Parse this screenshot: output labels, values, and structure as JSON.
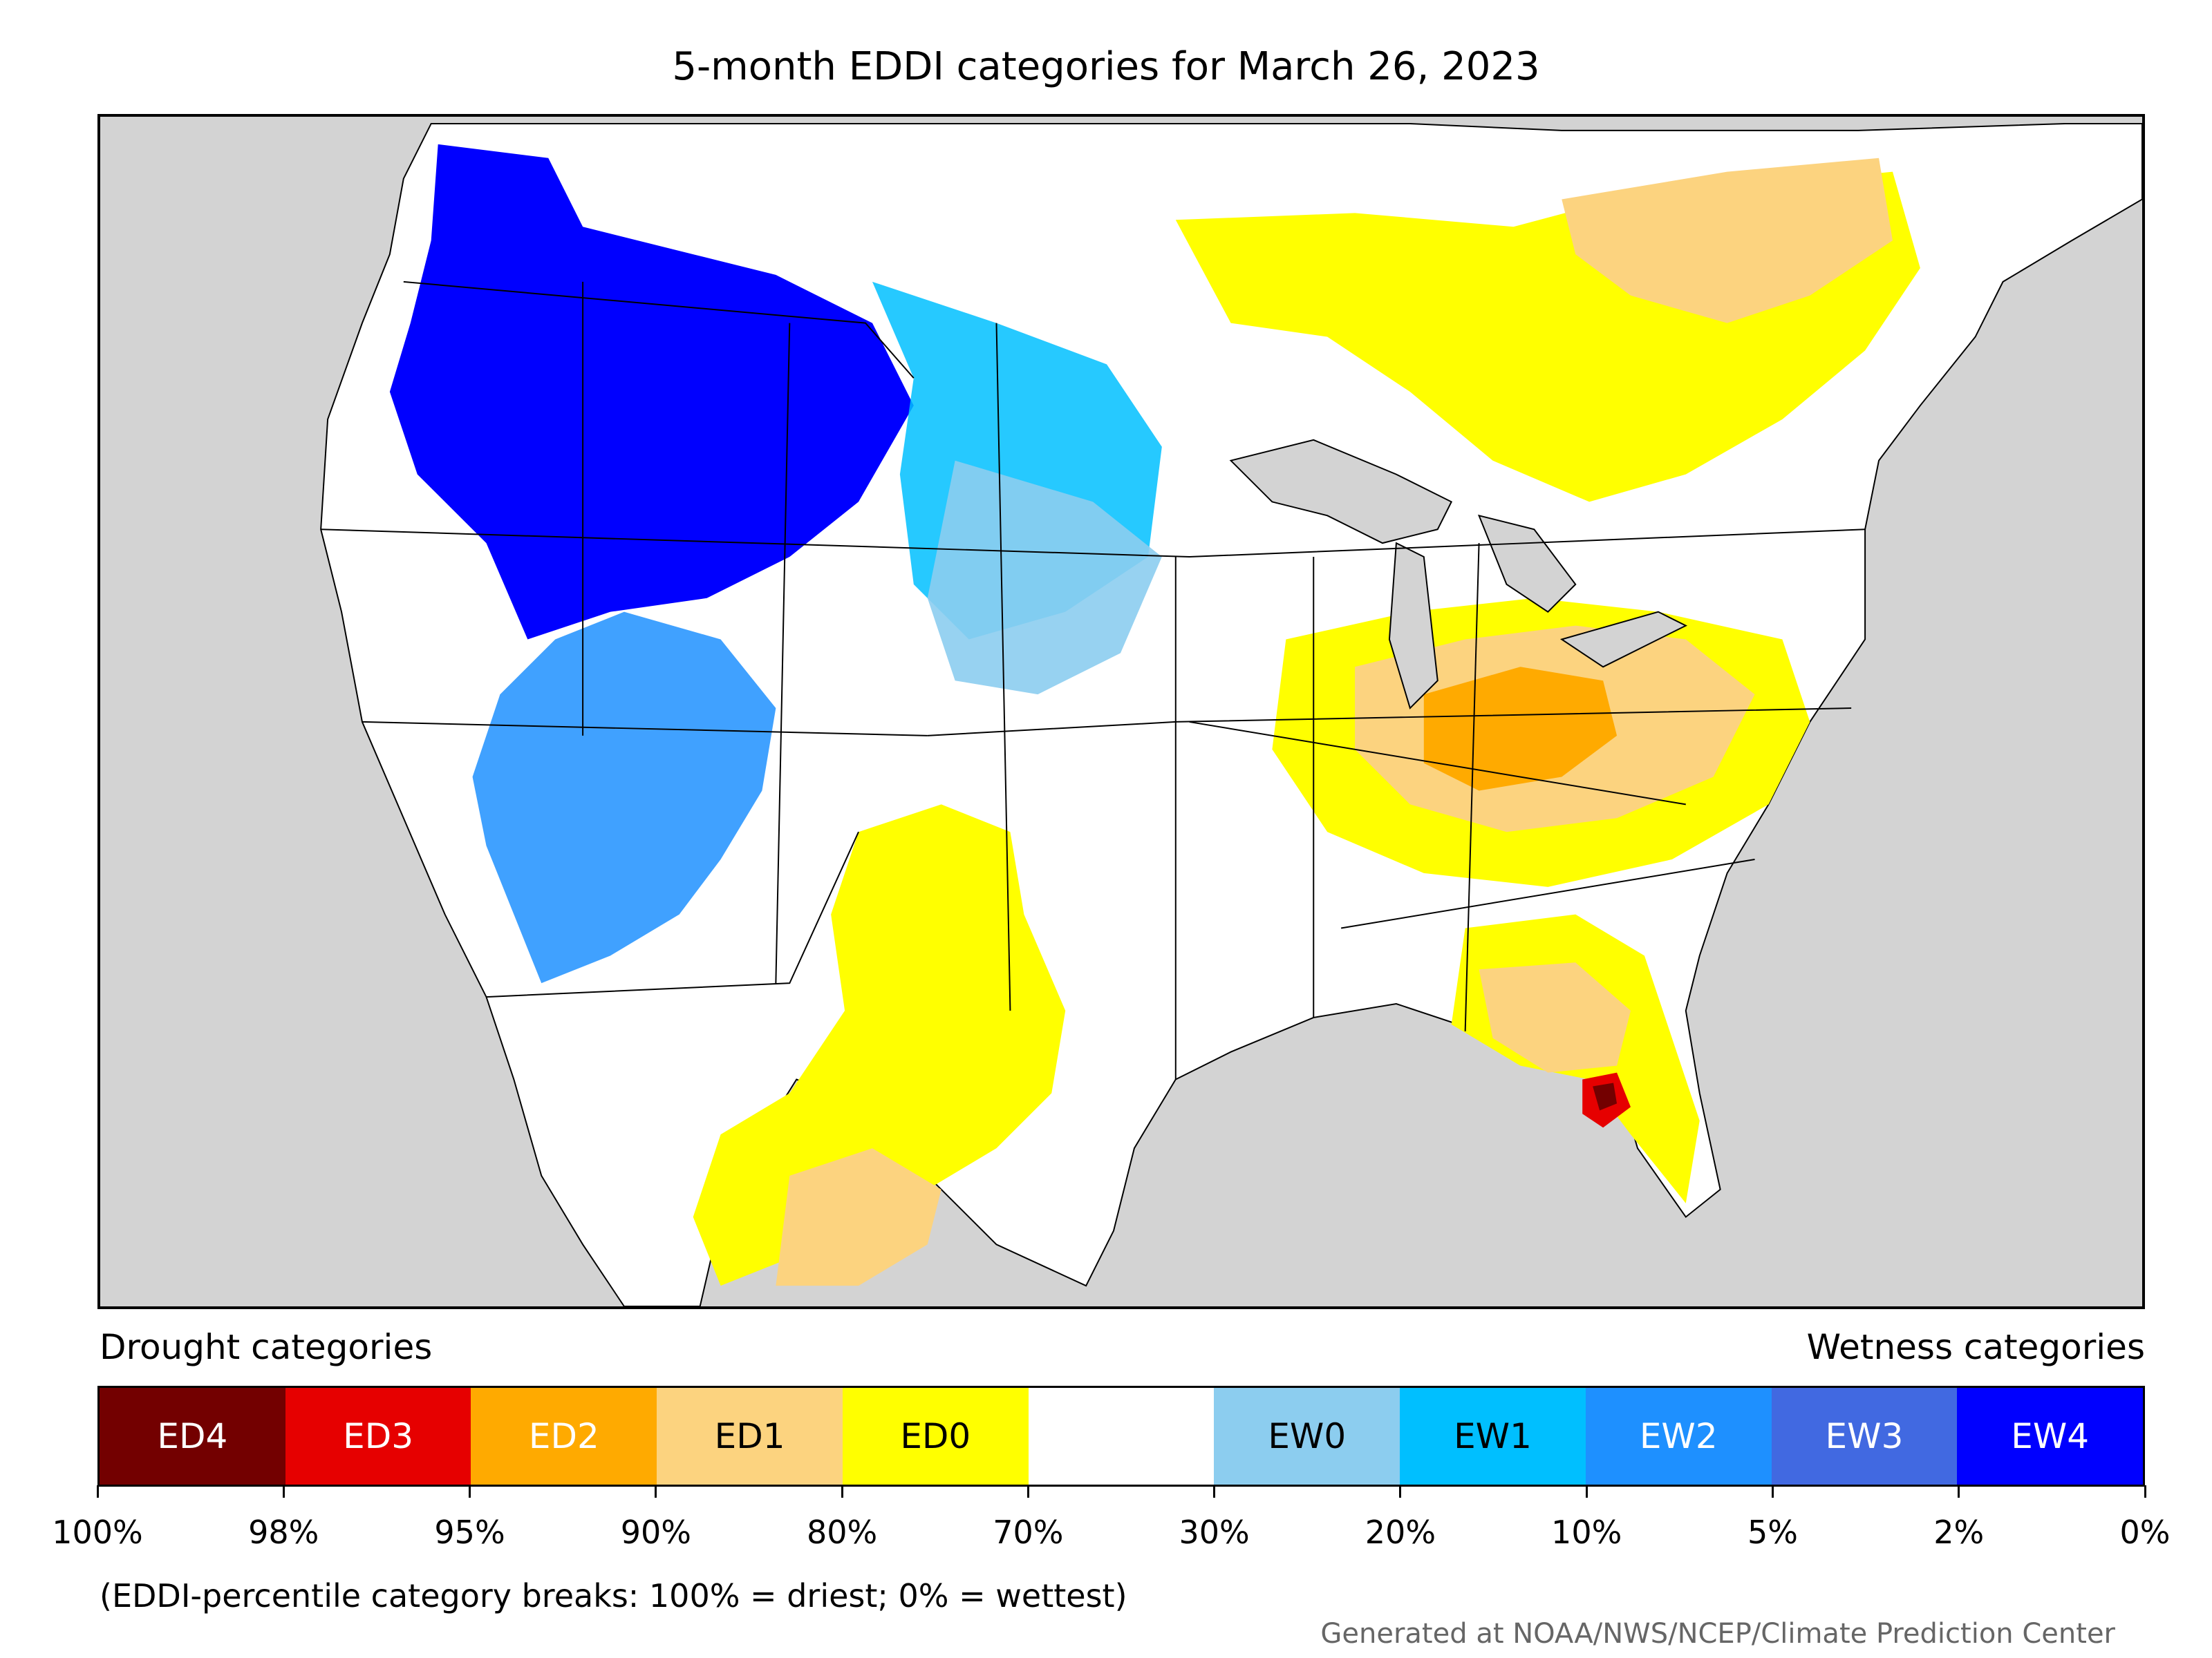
{
  "title": "5-month EDDI categories for March 26, 2023",
  "legend": {
    "drought_heading": "Drought categories",
    "wetness_heading": "Wetness categories",
    "categories": [
      {
        "label": "ED4",
        "color": "#730000",
        "text_color": "#ffffff"
      },
      {
        "label": "ED3",
        "color": "#e60000",
        "text_color": "#ffffff"
      },
      {
        "label": "ED2",
        "color": "#ffaa00",
        "text_color": "#ffffff"
      },
      {
        "label": "ED1",
        "color": "#fcd37f",
        "text_color": "#000000"
      },
      {
        "label": "ED0",
        "color": "#ffff00",
        "text_color": "#000000"
      },
      {
        "label": "",
        "color": "#ffffff",
        "text_color": "#000000"
      },
      {
        "label": "EW0",
        "color": "#8ccdef",
        "text_color": "#000000"
      },
      {
        "label": "EW1",
        "color": "#00bfff",
        "text_color": "#000000"
      },
      {
        "label": "EW2",
        "color": "#1e90ff",
        "text_color": "#ffffff"
      },
      {
        "label": "EW3",
        "color": "#4169e1",
        "text_color": "#ffffff"
      },
      {
        "label": "EW4",
        "color": "#0000ff",
        "text_color": "#ffffff"
      }
    ],
    "ticks": [
      "100%",
      "98%",
      "95%",
      "90%",
      "80%",
      "70%",
      "30%",
      "20%",
      "10%",
      "5%",
      "2%",
      "0%"
    ]
  },
  "footnote": "(EDDI-percentile category breaks: 100% = driest; 0% = wettest)",
  "credit": "Generated at NOAA/NWS/NCEP/Climate Prediction Center",
  "map": {
    "land_color": "#ffffff",
    "background_color": "#d3d3d3",
    "border_color": "#000000"
  }
}
